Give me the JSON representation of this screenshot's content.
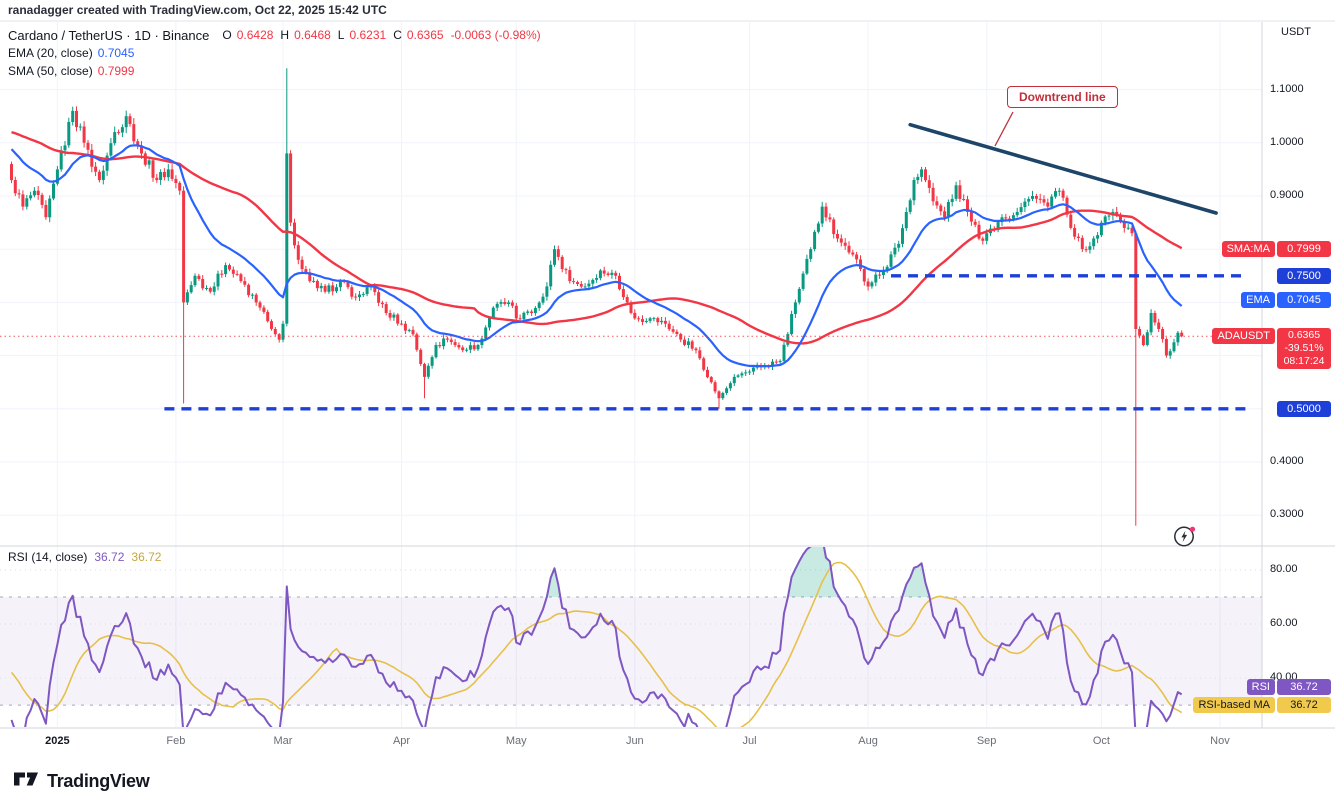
{
  "attribution": "ranadagger created with TradingView.com, Oct 22, 2025 15:42 UTC",
  "header": {
    "symbol": "Cardano / TetherUS · 1D · Binance",
    "ohlc": {
      "o_label": "O",
      "o": "0.6428",
      "h_label": "H",
      "h": "0.6468",
      "l_label": "L",
      "l": "0.6231",
      "c_label": "C",
      "c": "0.6365",
      "change": "-0.0063 (-0.98%)"
    },
    "ema_label": "EMA (20, close)",
    "ema_value": "0.7045",
    "sma_label": "SMA (50, close)",
    "sma_value": "0.7999"
  },
  "rsi_header": {
    "label": "RSI (14, close)",
    "rsi_value": "36.72",
    "ma_value": "36.72"
  },
  "annotations": {
    "downtrend_label": "Downtrend line"
  },
  "axis": {
    "currency": "USDT",
    "badges": [
      {
        "name": "sma-ma",
        "tag": "SMA:MA",
        "value": "0.7999",
        "price": 0.7999,
        "bg": "#f23645",
        "fg": "#ffffff"
      },
      {
        "name": "level-0-7500",
        "tag": "",
        "value": "0.7500",
        "price": 0.75,
        "bg": "#1e40d8",
        "fg": "#ffffff"
      },
      {
        "name": "ema",
        "tag": "EMA",
        "value": "0.7045",
        "price": 0.7045,
        "bg": "#2962ff",
        "fg": "#ffffff"
      },
      {
        "name": "symbol-last-price",
        "tag": "ADAUSDT",
        "value": "0.6365",
        "extra": [
          "-39.51%",
          "08:17:24"
        ],
        "price": 0.6365,
        "bg": "#f23645",
        "fg": "#ffffff"
      },
      {
        "name": "level-0-5000",
        "tag": "",
        "value": "0.5000",
        "price": 0.5,
        "bg": "#1e40d8",
        "fg": "#ffffff"
      }
    ],
    "rsi_badges": [
      {
        "name": "rsi",
        "tag": "RSI",
        "value": "36.72",
        "rsi": 36.72,
        "bg": "#7e57c2",
        "fg": "#ffffff"
      },
      {
        "name": "rsi-based-ma",
        "tag": "RSI-based MA",
        "value": "36.72",
        "rsi": 30.0,
        "bg": "#f1c94c",
        "fg": "#131722"
      }
    ]
  },
  "footer": {
    "brand": "TradingView"
  },
  "icons": {
    "bottom_right": "lightning-circle-icon",
    "logo": "tradingview-logo-icon"
  },
  "chart_data": {
    "type": "candlestick",
    "title": "Cardano / TetherUS 1D Binance",
    "symbol": "ADAUSDT",
    "interval": "1D",
    "last_candle": {
      "open": 0.6428,
      "high": 0.6468,
      "low": 0.6231,
      "close": 0.6365,
      "change": -0.0063,
      "change_pct": -0.98
    },
    "last_close": 0.6365,
    "price_ylim": [
      0.244,
      1.227
    ],
    "price_gridlines": [
      0.3,
      0.4,
      0.5,
      0.6,
      0.7,
      0.8,
      0.9,
      1.0,
      1.1
    ],
    "price_tick_labels": [
      {
        "label": "1.1000",
        "value": 1.1
      },
      {
        "label": "1.0000",
        "value": 1.0
      },
      {
        "label": "0.9000",
        "value": 0.9
      },
      {
        "label": "0.4000",
        "value": 0.4
      },
      {
        "label": "0.3000",
        "value": 0.3
      }
    ],
    "x_domain_days": [
      -3,
      327
    ],
    "start_date_day0": "2024-12-20",
    "time_ticks": [
      {
        "label": "2025",
        "day": 12
      },
      {
        "label": "Feb",
        "day": 43
      },
      {
        "label": "Mar",
        "day": 71
      },
      {
        "label": "Apr",
        "day": 102
      },
      {
        "label": "May",
        "day": 132
      },
      {
        "label": "Jun",
        "day": 163
      },
      {
        "label": "Jul",
        "day": 193
      },
      {
        "label": "Aug",
        "day": 224
      },
      {
        "label": "Sep",
        "day": 255
      },
      {
        "label": "Oct",
        "day": 285
      },
      {
        "label": "Nov",
        "day": 316
      }
    ],
    "warmup_anchors": [
      [
        -50,
        1.02
      ],
      [
        -35,
        1.08
      ],
      [
        -20,
        0.98
      ],
      [
        -10,
        1.02
      ],
      [
        -1,
        0.96
      ]
    ],
    "close_anchors": [
      [
        0,
        0.93
      ],
      [
        3,
        0.88
      ],
      [
        6,
        0.91
      ],
      [
        9,
        0.86
      ],
      [
        12,
        0.95
      ],
      [
        16,
        1.06
      ],
      [
        19,
        1.0
      ],
      [
        23,
        0.93
      ],
      [
        27,
        1.02
      ],
      [
        30,
        1.05
      ],
      [
        34,
        0.98
      ],
      [
        38,
        0.93
      ],
      [
        41,
        0.95
      ],
      [
        44,
        0.91
      ],
      [
        45,
        0.7
      ],
      [
        48,
        0.75
      ],
      [
        52,
        0.72
      ],
      [
        56,
        0.77
      ],
      [
        60,
        0.74
      ],
      [
        64,
        0.7
      ],
      [
        68,
        0.65
      ],
      [
        70,
        0.63
      ],
      [
        71,
        0.66
      ],
      [
        72,
        0.98
      ],
      [
        73,
        0.85
      ],
      [
        75,
        0.78
      ],
      [
        78,
        0.74
      ],
      [
        82,
        0.72
      ],
      [
        86,
        0.74
      ],
      [
        90,
        0.71
      ],
      [
        94,
        0.73
      ],
      [
        98,
        0.68
      ],
      [
        102,
        0.66
      ],
      [
        105,
        0.64
      ],
      [
        108,
        0.56
      ],
      [
        111,
        0.62
      ],
      [
        114,
        0.63
      ],
      [
        118,
        0.61
      ],
      [
        122,
        0.62
      ],
      [
        126,
        0.69
      ],
      [
        130,
        0.7
      ],
      [
        132,
        0.67
      ],
      [
        136,
        0.68
      ],
      [
        140,
        0.73
      ],
      [
        142,
        0.8
      ],
      [
        146,
        0.74
      ],
      [
        150,
        0.73
      ],
      [
        154,
        0.76
      ],
      [
        158,
        0.75
      ],
      [
        161,
        0.7
      ],
      [
        163,
        0.67
      ],
      [
        167,
        0.67
      ],
      [
        171,
        0.66
      ],
      [
        175,
        0.63
      ],
      [
        179,
        0.61
      ],
      [
        183,
        0.55
      ],
      [
        185,
        0.52
      ],
      [
        189,
        0.56
      ],
      [
        193,
        0.57
      ],
      [
        197,
        0.58
      ],
      [
        201,
        0.59
      ],
      [
        205,
        0.7
      ],
      [
        209,
        0.8
      ],
      [
        212,
        0.88
      ],
      [
        216,
        0.82
      ],
      [
        220,
        0.79
      ],
      [
        224,
        0.73
      ],
      [
        228,
        0.76
      ],
      [
        232,
        0.81
      ],
      [
        236,
        0.93
      ],
      [
        238,
        0.95
      ],
      [
        241,
        0.89
      ],
      [
        244,
        0.86
      ],
      [
        247,
        0.92
      ],
      [
        250,
        0.87
      ],
      [
        253,
        0.82
      ],
      [
        255,
        0.83
      ],
      [
        259,
        0.86
      ],
      [
        263,
        0.87
      ],
      [
        267,
        0.9
      ],
      [
        271,
        0.88
      ],
      [
        274,
        0.91
      ],
      [
        277,
        0.84
      ],
      [
        280,
        0.8
      ],
      [
        283,
        0.82
      ],
      [
        285,
        0.85
      ],
      [
        288,
        0.87
      ],
      [
        291,
        0.84
      ],
      [
        293,
        0.83
      ],
      [
        294,
        0.65
      ],
      [
        296,
        0.62
      ],
      [
        298,
        0.68
      ],
      [
        300,
        0.65
      ],
      [
        302,
        0.6
      ],
      [
        304,
        0.625
      ],
      [
        305,
        0.643
      ],
      [
        306,
        0.6365
      ]
    ],
    "special_wicks": [
      {
        "day": 45,
        "low": 0.51
      },
      {
        "day": 72,
        "high": 1.14
      },
      {
        "day": 108,
        "low": 0.52
      },
      {
        "day": 185,
        "low": 0.5
      },
      {
        "day": 294,
        "low": 0.28
      }
    ],
    "support_resistance": [
      {
        "price": 0.75,
        "from_day": 230,
        "style": "dashed",
        "color": "#1e40d8"
      },
      {
        "price": 0.5,
        "from_day": 40,
        "style": "dashed",
        "color": "#1e40d8"
      }
    ],
    "trend_line": {
      "from_day": 235,
      "from_price": 1.034,
      "to_day": 315,
      "to_price": 0.868,
      "color": "#1d4569",
      "label": "Downtrend line"
    },
    "indicators": [
      {
        "type": "EMA",
        "period": 20,
        "color": "#2962ff",
        "last": 0.7045
      },
      {
        "type": "SMA",
        "period": 50,
        "color": "#f23645",
        "last": 0.7999
      },
      {
        "type": "RSI",
        "period": 14,
        "color": "#7e57c2",
        "last": 36.72
      },
      {
        "type": "RSI-based MA",
        "period": 14,
        "color": "#e7c04a",
        "last": 36.72
      }
    ],
    "rsi_ylim": [
      21.9,
      88.5
    ],
    "rsi_gridlines": [
      40,
      60,
      80
    ],
    "rsi_band": [
      30,
      70
    ],
    "rsi_tick_labels": [
      {
        "label": "80.00",
        "value": 80
      },
      {
        "label": "60.00",
        "value": 60
      },
      {
        "label": "40.00",
        "value": 40
      }
    ],
    "candle_colors": {
      "up": "#089981",
      "down": "#f23645"
    }
  }
}
